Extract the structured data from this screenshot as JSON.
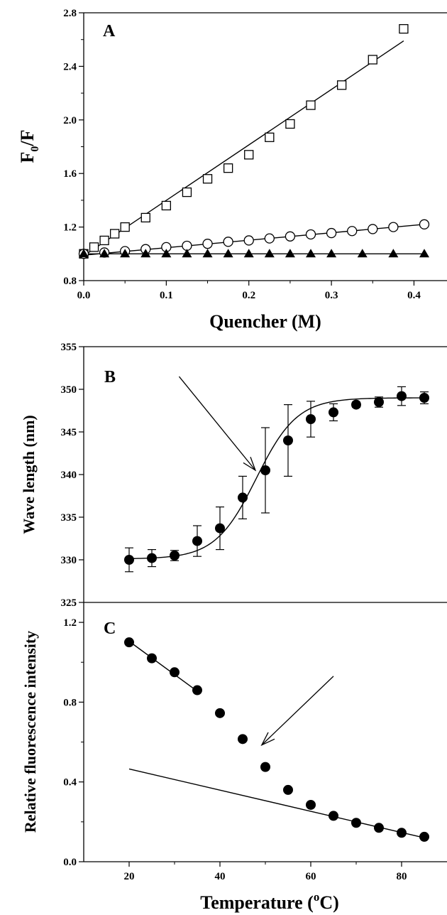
{
  "chart_data": [
    {
      "panel_label": "A",
      "type": "scatter",
      "xlabel": "Quencher (M)",
      "ylabel": "F0/F",
      "ylabel_main": "F",
      "ylabel_sub": "0",
      "ylabel_tail": "/F",
      "xlim": [
        0,
        0.44
      ],
      "ylim": [
        0.8,
        2.8
      ],
      "x_ticks": [
        0.0,
        0.1,
        0.2,
        0.3,
        0.4
      ],
      "x_tick_labels": [
        "0.0",
        "0.1",
        "0.2",
        "0.3",
        "0.4"
      ],
      "y_ticks": [
        0.8,
        1.2,
        1.6,
        2.0,
        2.4,
        2.8
      ],
      "y_tick_labels": [
        "0.8",
        "1.2",
        "1.6",
        "2.0",
        "2.4",
        "2.8"
      ],
      "grid": false,
      "series": [
        {
          "marker": "open-square",
          "x": [
            0.0,
            0.0125,
            0.025,
            0.0375,
            0.05,
            0.075,
            0.1,
            0.125,
            0.15,
            0.175,
            0.2,
            0.225,
            0.25,
            0.275,
            0.3125,
            0.35,
            0.3875
          ],
          "y": [
            1.0,
            1.05,
            1.1,
            1.15,
            1.2,
            1.27,
            1.36,
            1.46,
            1.56,
            1.64,
            1.74,
            1.87,
            1.97,
            2.11,
            2.26,
            2.45,
            2.68
          ],
          "fit": {
            "x": [
              0.0,
              0.3875
            ],
            "y": [
              0.985,
              2.59
            ]
          }
        },
        {
          "marker": "open-circle",
          "x": [
            0.0,
            0.025,
            0.05,
            0.075,
            0.1,
            0.125,
            0.15,
            0.175,
            0.2,
            0.225,
            0.25,
            0.275,
            0.3,
            0.325,
            0.35,
            0.375,
            0.4125
          ],
          "y": [
            1.0,
            1.01,
            1.02,
            1.035,
            1.05,
            1.06,
            1.075,
            1.09,
            1.1,
            1.115,
            1.13,
            1.145,
            1.155,
            1.17,
            1.185,
            1.2,
            1.22
          ],
          "fit": {
            "x": [
              0.0,
              0.4125
            ],
            "y": [
              0.99,
              1.22
            ]
          }
        },
        {
          "marker": "filled-triangle",
          "x": [
            0.0,
            0.025,
            0.05,
            0.075,
            0.1,
            0.125,
            0.15,
            0.175,
            0.2,
            0.225,
            0.25,
            0.275,
            0.3,
            0.3375,
            0.375,
            0.4125
          ],
          "y": [
            1.0,
            1.0,
            1.0,
            1.0,
            1.0,
            1.0,
            1.0,
            1.0,
            1.0,
            1.0,
            1.0,
            1.0,
            1.0,
            1.0,
            1.0,
            1.0
          ],
          "fit": {
            "x": [
              0.0,
              0.4125
            ],
            "y": [
              1.0,
              1.0
            ]
          }
        }
      ]
    },
    {
      "panel_label": "B",
      "type": "scatter",
      "xlabel": "",
      "ylabel": "Wave length (nm)",
      "xlim": [
        10,
        90
      ],
      "ylim": [
        325,
        355
      ],
      "y_ticks": [
        325,
        330,
        335,
        340,
        345,
        350,
        355
      ],
      "y_tick_labels": [
        "325",
        "330",
        "335",
        "340",
        "345",
        "350",
        "355"
      ],
      "grid": false,
      "series": [
        {
          "marker": "filled-circle",
          "x": [
            20,
            25,
            30,
            35,
            40,
            45,
            50,
            55,
            60,
            65,
            70,
            75,
            80,
            85
          ],
          "y": [
            330.0,
            330.2,
            330.5,
            332.2,
            333.7,
            337.3,
            340.5,
            344.0,
            346.5,
            347.3,
            348.2,
            348.5,
            349.2,
            349.0
          ],
          "yerr": [
            1.4,
            1.0,
            0.6,
            1.8,
            2.5,
            2.5,
            5.0,
            4.2,
            2.1,
            1.0,
            0.3,
            0.6,
            1.1,
            0.7
          ],
          "fit": {
            "type": "sigmoid",
            "bottom": 330.1,
            "top": 349.0,
            "midpoint": 48.0,
            "slope": 4.5
          }
        }
      ],
      "annotations": [
        {
          "type": "arrow",
          "from": [
            31,
            351.5
          ],
          "to": [
            47.8,
            340.5
          ]
        }
      ]
    },
    {
      "panel_label": "C",
      "type": "scatter",
      "xlabel": "Temperature (oC)",
      "xlabel_main": "Temperature (",
      "xlabel_sup": "o",
      "xlabel_tail": "C)",
      "ylabel": "Relative fluorescence intensity",
      "xlim": [
        10,
        90
      ],
      "ylim": [
        0.0,
        1.3
      ],
      "x_ticks": [
        20,
        40,
        60,
        80
      ],
      "x_tick_labels": [
        "20",
        "40",
        "60",
        "80"
      ],
      "y_ticks": [
        0.0,
        0.4,
        0.8,
        1.2
      ],
      "y_tick_labels": [
        "0.0",
        "0.4",
        "0.8",
        "1.2"
      ],
      "grid": false,
      "series": [
        {
          "marker": "filled-circle",
          "x": [
            20,
            25,
            30,
            35,
            40,
            45,
            50,
            55,
            60,
            65,
            70,
            75,
            80,
            85
          ],
          "y": [
            1.1,
            1.02,
            0.95,
            0.86,
            0.745,
            0.615,
            0.475,
            0.36,
            0.285,
            0.23,
            0.195,
            0.17,
            0.145,
            0.125
          ],
          "fits": [
            {
              "x": [
                20,
                35
              ],
              "y": [
                1.105,
                0.855
              ]
            },
            {
              "x": [
                20,
                85
              ],
              "y": [
                0.465,
                0.12
              ]
            }
          ]
        }
      ],
      "annotations": [
        {
          "type": "arrow",
          "from": [
            65,
            0.93
          ],
          "to": [
            49.2,
            0.585
          ]
        }
      ]
    }
  ]
}
